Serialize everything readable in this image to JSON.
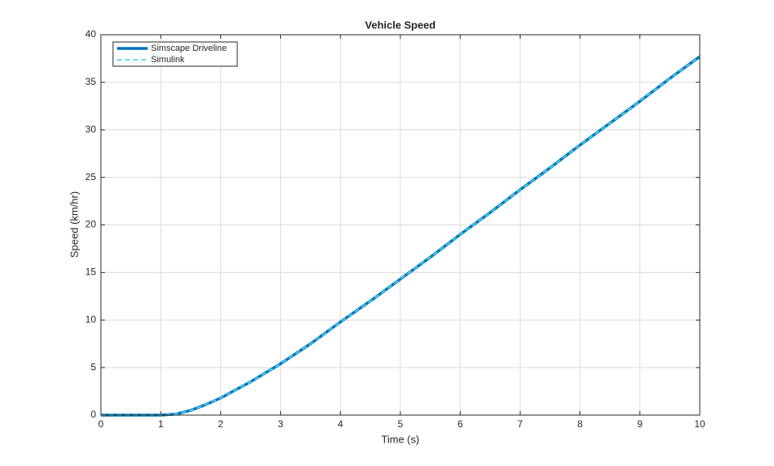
{
  "chart_data": {
    "type": "line",
    "title": "Vehicle Speed",
    "x_label": "Time (s)",
    "y_label": "Speed (km/hr)",
    "x": [
      0,
      0.5,
      1,
      1.25,
      1.5,
      1.75,
      2,
      2.5,
      3,
      3.5,
      4,
      4.5,
      5,
      5.5,
      6,
      6.5,
      7,
      7.5,
      8,
      8.5,
      9,
      9.5,
      10
    ],
    "series": [
      {
        "name": "Simscape Driveline",
        "color": "#0072bd",
        "values": [
          0,
          0,
          0,
          0.1,
          0.5,
          1.1,
          1.8,
          3.5,
          5.4,
          7.5,
          9.8,
          12.0,
          14.3,
          16.6,
          19.0,
          21.3,
          23.7,
          26.0,
          28.4,
          30.7,
          33.0,
          35.4,
          37.7
        ]
      },
      {
        "name": "Simulink",
        "color": "#4dd9f0",
        "values": [
          0,
          0,
          0,
          0.1,
          0.5,
          1.1,
          1.8,
          3.5,
          5.4,
          7.5,
          9.8,
          12.0,
          14.3,
          16.6,
          19.0,
          21.3,
          23.7,
          26.0,
          28.4,
          30.7,
          33.0,
          35.4,
          37.7
        ]
      }
    ],
    "xlim": [
      0,
      10
    ],
    "xticks": [
      0,
      1,
      2,
      3,
      4,
      5,
      6,
      7,
      8,
      9,
      10
    ],
    "ylim": [
      0,
      40
    ],
    "yticks": [
      0,
      5,
      10,
      15,
      20,
      25,
      30,
      35,
      40
    ],
    "grid": true,
    "legend": "upper left"
  }
}
